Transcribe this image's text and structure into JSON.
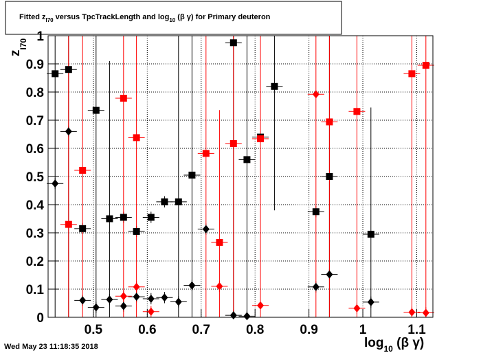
{
  "chart_data": {
    "type": "scatter",
    "title": [
      "Fitted  z",
      "I70",
      "  versus TpcTrackLength and log",
      "10",
      " (β γ) for Primary deuteron"
    ],
    "xlabel": [
      "log",
      "10",
      " (β γ)"
    ],
    "ylabel": [
      "z",
      "I70"
    ],
    "timestamp": "Wed May 23 11:18:35 2018",
    "xlim": [
      0.416,
      1.13
    ],
    "ylim": [
      0,
      1
    ],
    "xticks": [
      0.5,
      0.6,
      0.7,
      0.8,
      0.9,
      1,
      1.1
    ],
    "yticks": [
      0,
      0.1,
      0.2,
      0.3,
      0.4,
      0.5,
      0.6,
      0.7,
      0.8,
      0.9,
      1
    ],
    "grid": true,
    "series": [
      {
        "color": "#000000",
        "marker": "square",
        "x": [
          0.429,
          0.454,
          0.48,
          0.505,
          0.53,
          0.556,
          0.58,
          0.607,
          0.632,
          0.658,
          0.683,
          0.76,
          0.785,
          0.81,
          0.836,
          0.913,
          0.938,
          1.015
        ],
        "values": [
          0.865,
          0.88,
          0.315,
          0.735,
          0.35,
          0.355,
          0.305,
          0.355,
          0.41,
          0.41,
          0.505,
          0.975,
          0.56,
          0.64,
          0.82,
          0.375,
          0.5,
          0.295
        ],
        "errors": [
          1,
          1,
          0.02,
          1,
          0.56,
          0.02,
          0.02,
          0.02,
          0.02,
          1,
          1,
          1,
          1,
          0.02,
          0.44,
          0.02,
          1,
          0.45
        ]
      },
      {
        "color": "#000000",
        "marker": "diamond",
        "x": [
          0.429,
          0.454,
          0.48,
          0.505,
          0.53,
          0.556,
          0.58,
          0.607,
          0.632,
          0.658,
          0.683,
          0.709,
          0.76,
          0.785,
          0.913,
          0.938,
          1.015
        ],
        "values": [
          0.475,
          0.66,
          0.06,
          0.035,
          0.063,
          0.04,
          0.073,
          0.066,
          0.07,
          0.055,
          0.113,
          0.313,
          0.007,
          0.004,
          0.108,
          0.152,
          0.054
        ],
        "errors": [
          0.02,
          0.02,
          0.02,
          0.02,
          0.02,
          0.02,
          0.02,
          0.02,
          0.02,
          0.02,
          0.02,
          0.02,
          0.02,
          0.02,
          0.02,
          0.02,
          0.02
        ]
      },
      {
        "color": "#ff0000",
        "marker": "square",
        "x": [
          0.454,
          0.48,
          0.556,
          0.58,
          0.709,
          0.734,
          0.76,
          0.81,
          0.938,
          0.989,
          1.091,
          1.117
        ],
        "values": [
          0.33,
          0.522,
          0.778,
          0.638,
          0.582,
          0.266,
          0.617,
          0.634,
          0.694,
          0.731,
          0.865,
          0.895
        ],
        "errors": [
          1,
          1,
          1,
          1,
          1,
          0.47,
          1,
          1,
          1,
          1,
          1,
          1
        ]
      },
      {
        "color": "#ff0000",
        "marker": "diamond",
        "x": [
          0.556,
          0.58,
          0.607,
          0.734,
          0.81,
          0.913,
          0.989,
          1.091,
          1.117
        ],
        "values": [
          0.075,
          0.108,
          0.02,
          0.11,
          0.042,
          0.792,
          0.032,
          0.018,
          0.016
        ],
        "errors": [
          0.02,
          0.02,
          0.02,
          0.02,
          0.02,
          1,
          0.02,
          0.02,
          0.02
        ]
      }
    ]
  }
}
